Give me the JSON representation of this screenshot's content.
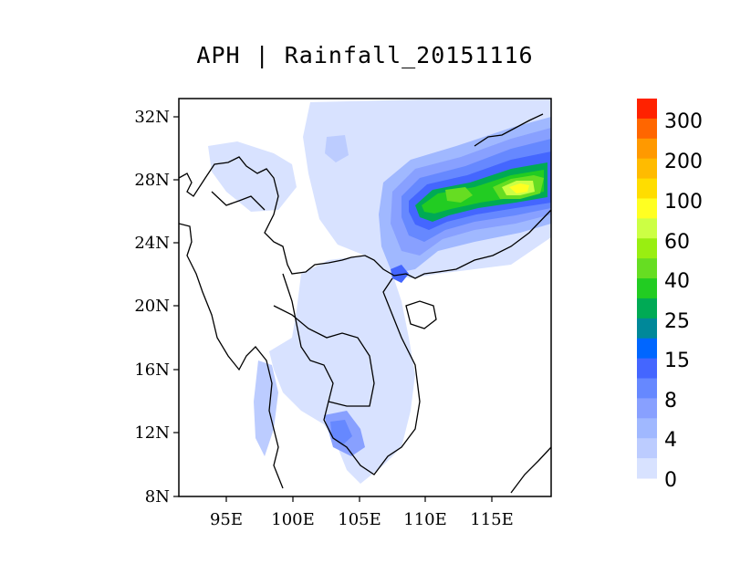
{
  "title": "APH | Rainfall_20151116",
  "lat_ticks": [
    "32N",
    "28N",
    "24N",
    "20N",
    "16N",
    "12N",
    "8N"
  ],
  "lon_ticks": [
    "95E",
    "100E",
    "105E",
    "110E",
    "115E"
  ],
  "colorbar": {
    "labels": [
      "300",
      "200",
      "100",
      "60",
      "40",
      "25",
      "15",
      "8",
      "4",
      "0"
    ],
    "colors": [
      "#ff2200",
      "#ff6600",
      "#ff9900",
      "#ffbb00",
      "#ffdd00",
      "#ffff22",
      "#ccff44",
      "#99ee11",
      "#66dd22",
      "#22cc22",
      "#00aa55",
      "#008899",
      "#0066ff",
      "#4466ff",
      "#6688ff",
      "#88a0ff",
      "#a0b8ff",
      "#bcccff",
      "#d8e2ff"
    ]
  }
}
